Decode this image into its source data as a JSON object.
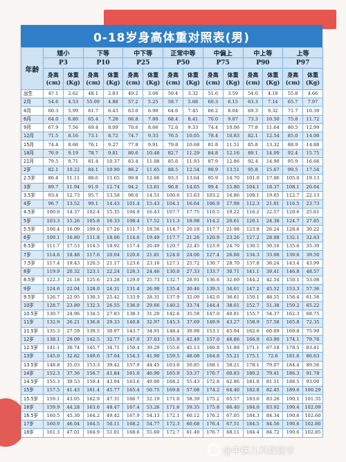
{
  "title": "0-18岁身高体重对照表(男)",
  "age_header": "年龄",
  "levels": [
    {
      "label": "矮小",
      "pct": "P3"
    },
    {
      "label": "下等",
      "pct": "P10"
    },
    {
      "label": "中下等",
      "pct": "P25"
    },
    {
      "label": "正常中等",
      "pct": "P50"
    },
    {
      "label": "中偏上",
      "pct": "P75"
    },
    {
      "label": "中上等",
      "pct": "P90"
    },
    {
      "label": "上等",
      "pct": "P97"
    }
  ],
  "unit_height": "身高\n(cm)",
  "unit_weight": "体重\n(Kg)",
  "rows": [
    [
      "出生",
      "47.1",
      "2.62",
      "48.1",
      "2.83",
      "49.2",
      "3.06",
      "50.4",
      "3.32",
      "51.6",
      "3.59",
      "54.0",
      "4.18",
      "55.8",
      "4.66"
    ],
    [
      "2月",
      "54.6",
      "4.53",
      "55.09",
      "4.88",
      "57.2",
      "5.25",
      "58.7",
      "5.68",
      "60.3",
      "6.15",
      "63.3",
      "7.14",
      "65.7",
      "7.97"
    ],
    [
      "4月",
      "60.3",
      "5.99",
      "61.7",
      "6.43",
      "63.0",
      "6.90",
      "64.6",
      "7.45",
      "66.2",
      "8.04",
      "69.3",
      "9.32",
      "71.7",
      "10.39"
    ],
    [
      "6月",
      "64.0",
      "6.80",
      "65.4",
      "7.28",
      "66.8",
      "7.80",
      "68.4",
      "8.41",
      "70.0",
      "9.07",
      "73.3",
      "10.50",
      "75.8",
      "11.72"
    ],
    [
      "9月",
      "67.9",
      "7.56",
      "69.4",
      "8.09",
      "70.6",
      "8.66",
      "72.6",
      "9.33",
      "74.4",
      "10.06",
      "77.8",
      "11.64",
      "80.5",
      "12.99"
    ],
    [
      "12月",
      "71.5",
      "8.16",
      "73.1",
      "8.72",
      "74.7",
      "9.33",
      "76.5",
      "10.05",
      "78.4",
      "10.83",
      "82.1",
      "12.54",
      "85.0",
      "14.00"
    ],
    [
      "15月",
      "74.4",
      "8.68",
      "76.1",
      "9.27",
      "77.8",
      "9.91",
      "79.8",
      "10.68",
      "81.8",
      "11.51",
      "85.8",
      "13.32",
      "88.9",
      "14.88"
    ],
    [
      "18月",
      "76.9",
      "9.19",
      "78.7",
      "9.81",
      "80.6",
      "10.48",
      "82.7",
      "11.29",
      "84.8",
      "12.16",
      "89.1",
      "14.09",
      "92.4",
      "15.75"
    ],
    [
      "21月",
      "79.5",
      "9.71",
      "81.4",
      "10.37",
      "83.4",
      "11.08",
      "85.6",
      "11.93",
      "87.9",
      "12.86",
      "92.4",
      "14.90",
      "95.9",
      "16.66"
    ],
    [
      "2岁",
      "82.1",
      "10.22",
      "84.1",
      "10.90",
      "86.2",
      "11.65",
      "88.5",
      "12.54",
      "90.9",
      "13.51",
      "95.8",
      "15.67",
      "99.5",
      "17.54"
    ],
    [
      "2.5岁",
      "86.4",
      "11.11",
      "88.6",
      "11.65",
      "90.8",
      "12.66",
      "93.3",
      "13.64",
      "95.9",
      "14.70",
      "101.0",
      "17.06",
      "105.0",
      "19.13"
    ],
    [
      "3岁",
      "89.7",
      "11.94",
      "91.9",
      "12.74",
      "94.2",
      "13.61",
      "96.8",
      "14.65",
      "99.4",
      "15.80",
      "104.1",
      "18.37",
      "108.1",
      "20.64"
    ],
    [
      "3.5岁",
      "93.4",
      "12.73",
      "95.7",
      "13.58",
      "98.0",
      "14.51",
      "100.6",
      "15.63",
      "103.2",
      "16.86",
      "108.1",
      "19.65",
      "112.7",
      "22.13"
    ],
    [
      "4岁",
      "96.7",
      "13.52",
      "99.1",
      "14.43",
      "101.4",
      "15.43",
      "104.1",
      "16.64",
      "106.9",
      "17.98",
      "112.3",
      "21.01",
      "116.5",
      "23.73"
    ],
    [
      "4.5岁",
      "100.0",
      "14.37",
      "102.4",
      "15.35",
      "104.9",
      "16.43",
      "107.7",
      "17.75",
      "110.5",
      "19.22",
      "116.2",
      "22.57",
      "120.6",
      "25.61"
    ],
    [
      "5岁",
      "103.3",
      "15.26",
      "105.8",
      "16.33",
      "108.4",
      "17.52",
      "111.3",
      "18.98",
      "114.2",
      "20.61",
      "120.1",
      "24.38",
      "124.7",
      "27.85"
    ],
    [
      "5.5岁",
      "106.4",
      "16.09",
      "109.0",
      "17.26",
      "111.7",
      "18.56",
      "114.7",
      "20.18",
      "117.7",
      "21.98",
      "123.8",
      "26.24",
      "128.6",
      "30.22"
    ],
    [
      "6岁",
      "109.1",
      "16.80",
      "111.8",
      "18.06",
      "114.6",
      "19.49",
      "117.7",
      "21.26",
      "120.9",
      "23.26",
      "127.2",
      "28.08",
      "132.1",
      "32.63"
    ],
    [
      "6.5岁",
      "111.7",
      "17.53",
      "114.5",
      "18.92",
      "117.4",
      "20.49",
      "120.7",
      "22.45",
      "123.9",
      "24.70",
      "130.5",
      "30.16",
      "135.6",
      "35.30"
    ],
    [
      "7岁",
      "114.6",
      "18.48",
      "117.6",
      "20.04",
      "120.6",
      "21.81",
      "124.0",
      "24.06",
      "127.4",
      "26.66",
      "134.3",
      "33.08",
      "139.6",
      "39.50"
    ],
    [
      "7.5岁",
      "117.4",
      "19.43",
      "120.5",
      "21.17",
      "123.6",
      "23.16",
      "127.1",
      "25.72",
      "130.7",
      "28.70",
      "137.8",
      "36.24",
      "143.4",
      "43.99"
    ],
    [
      "8岁",
      "119.9",
      "20.32",
      "123.1",
      "22.24",
      "126.3",
      "24.46",
      "130.0",
      "27.33",
      "133.7",
      "30.71",
      "141.1",
      "39.41",
      "146.8",
      "48.57"
    ],
    [
      "8.5岁",
      "122.3",
      "21.18",
      "125.6",
      "23.28",
      "129.0",
      "25.73",
      "132.7",
      "28.91",
      "136.6",
      "32.69",
      "144.2",
      "42.54",
      "150.1",
      "53.08"
    ],
    [
      "9岁",
      "124.6",
      "22.04",
      "128.0",
      "24.31",
      "131.4",
      "26.98",
      "135.4",
      "30.46",
      "139.3",
      "34.61",
      "147.2",
      "45.52",
      "153.3",
      "57.36"
    ],
    [
      "9.5岁",
      "126.7",
      "22.95",
      "130.3",
      "25.42",
      "133.9",
      "28.31",
      "137.9",
      "32.09",
      "142.0",
      "36.61",
      "150.1",
      "48.55",
      "156.4",
      "61.56"
    ],
    [
      "10岁",
      "128.7",
      "23.89",
      "132.3",
      "26.55",
      "136.0",
      "29.66",
      "140.2",
      "33.74",
      "144.4",
      "38.61",
      "152.7",
      "51.38",
      "159.2",
      "65.22"
    ],
    [
      "10.5岁",
      "130.7",
      "24.96",
      "134.5",
      "27.83",
      "138.3",
      "31.20",
      "142.6",
      "35.58",
      "147.0",
      "40.81",
      "155.7",
      "54.37",
      "162.3",
      "68.75"
    ],
    [
      "11岁",
      "132.9",
      "26.21",
      "136.8",
      "29.33",
      "140.8",
      "32.97",
      "145.3",
      "37.69",
      "149.9",
      "43.27",
      "158.9",
      "57.58",
      "165.8",
      "72.35"
    ],
    [
      "11.5岁",
      "135.3",
      "27.59",
      "139.5",
      "30.97",
      "143.7",
      "34.91",
      "148.4",
      "39.98",
      "153.1",
      "45.94",
      "162.6",
      "60.69",
      "169.8",
      "75.99"
    ],
    [
      "12岁",
      "138.1",
      "29.09",
      "142.5",
      "32.77",
      "147.0",
      "37.03",
      "151.9",
      "42.49",
      "157.0",
      "48.86",
      "166.9",
      "63.90",
      "174.1",
      "79.76"
    ],
    [
      "12.5岁",
      "141.1",
      "30.74",
      "145.7",
      "34.71",
      "150.4",
      "39.29",
      "155.6",
      "45.13",
      "160.8",
      "51.89",
      "171.1",
      "67.18",
      "178.5",
      "83.41"
    ],
    [
      "13岁",
      "145.0",
      "32.82",
      "149.6",
      "37.04",
      "154.3",
      "41.90",
      "159.5",
      "48.08",
      "164.8",
      "55.21",
      "175.1",
      "72.6",
      "181.6",
      "86.63"
    ],
    [
      "13.5岁",
      "148.8",
      "35.03",
      "153.3",
      "39.42",
      "157.9",
      "44.45",
      "163.0",
      "50.85",
      "168.1",
      "58.21",
      "178.1",
      "79.07",
      "184.4",
      "89.56"
    ],
    [
      "14岁",
      "152.3",
      "37.36",
      "156.7",
      "41.84",
      "161.0",
      "46.90",
      "165.9",
      "53.37",
      "170.7",
      "60.83",
      "180.2",
      "79.41",
      "186.3",
      "91.78"
    ],
    [
      "14.5岁",
      "155.3",
      "39.53",
      "159.4",
      "43.94",
      "163.6",
      "49.00",
      "168.2",
      "55.43",
      "172.8",
      "62.86",
      "181.8",
      "81.11",
      "188.5",
      "93.00"
    ],
    [
      "15岁",
      "157.5",
      "41.43",
      "161.4",
      "45.77",
      "165.4",
      "50.75",
      "169.8",
      "57.08",
      "174.2",
      "64.40",
      "182.8",
      "82.45",
      "189.6",
      "100.29"
    ],
    [
      "15.5岁",
      "159.1",
      "43.05",
      "162.9",
      "47.31",
      "166.7",
      "52.19",
      "171.0",
      "58.39",
      "175.2",
      "65.57",
      "183.6",
      "83.26",
      "190.1",
      "101.35"
    ],
    [
      "16岁",
      "159.9",
      "44.28",
      "163.6",
      "48.47",
      "167.4",
      "53.26",
      "171.6",
      "59.35",
      "175.8",
      "66.40",
      "184.0",
      "83.92",
      "190.4",
      "102.09"
    ],
    [
      "16.5岁",
      "160.5",
      "45.30",
      "164.2",
      "49.42",
      "167.9",
      "54.13",
      "172.1",
      "60.12",
      "176.2",
      "67.05",
      "184.3",
      "84.34",
      "190.6",
      "102.60"
    ],
    [
      "17岁",
      "160.9",
      "46.04",
      "164.5",
      "50.11",
      "168.2",
      "54.77",
      "172.3",
      "60.68",
      "176.4",
      "67.51",
      "184.5",
      "84.56",
      "190.6",
      "102.80"
    ],
    [
      "18岁",
      "161.3",
      "47.01",
      "164.9",
      "51.01",
      "168.6",
      "55.60",
      "172.7",
      "61.40",
      "176.7",
      "68.11",
      "184.4",
      "84.72",
      "190.6",
      "102.85"
    ]
  ],
  "watermark": "@中医儿科魏建诊"
}
